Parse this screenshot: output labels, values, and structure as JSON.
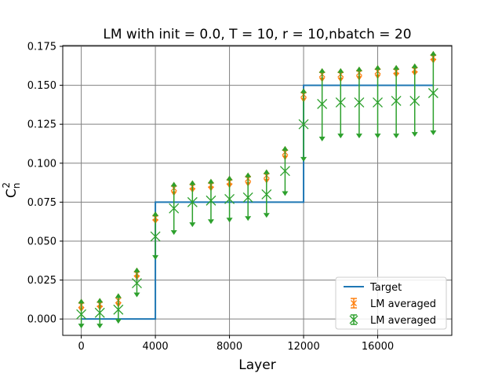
{
  "chart_data": {
    "type": "scatter",
    "title": "LM with init = 0.0, T = 10, r = 10,nbatch = 20",
    "xlabel": "Layer",
    "ylabel_base": "C",
    "ylabel_sub": "n",
    "ylabel_sup": "2",
    "xlim": [
      -1000,
      20000
    ],
    "ylim": [
      -0.0105,
      0.1755
    ],
    "grid": true,
    "legend_position": "lower-right",
    "x_ticks": [
      {
        "value": 0,
        "label": "0"
      },
      {
        "value": 4000,
        "label": "4000"
      },
      {
        "value": 8000,
        "label": "8000"
      },
      {
        "value": 12000,
        "label": "12000"
      },
      {
        "value": 16000,
        "label": "16000"
      }
    ],
    "y_ticks": [
      {
        "value": 0.0,
        "label": "0.000"
      },
      {
        "value": 0.025,
        "label": "0.025"
      },
      {
        "value": 0.05,
        "label": "0.050"
      },
      {
        "value": 0.075,
        "label": "0.075"
      },
      {
        "value": 0.1,
        "label": "0.100"
      },
      {
        "value": 0.125,
        "label": "0.125"
      },
      {
        "value": 0.15,
        "label": "0.150"
      },
      {
        "value": 0.175,
        "label": "0.175"
      }
    ],
    "target": {
      "name": "Target",
      "color": "#1f77b4",
      "points": [
        [
          0,
          0.0
        ],
        [
          4000,
          0.0
        ],
        [
          4000,
          0.075
        ],
        [
          12000,
          0.075
        ],
        [
          12000,
          0.15
        ],
        [
          19000,
          0.15
        ]
      ]
    },
    "series": [
      {
        "name": "LM averaged",
        "color": "#ff7f0e",
        "marker": "x",
        "x": [
          0,
          1000,
          2000,
          3000,
          4000,
          5000,
          6000,
          7000,
          8000,
          9000,
          10000,
          11000,
          12000,
          13000,
          14000,
          15000,
          16000,
          17000,
          18000,
          19000
        ],
        "y": [
          0.009,
          0.0095,
          0.012,
          0.029,
          0.065,
          0.084,
          0.085,
          0.086,
          0.088,
          0.09,
          0.092,
          0.107,
          0.144,
          0.157,
          0.157,
          0.158,
          0.159,
          0.159,
          0.16,
          0.168
        ],
        "err_low": [
          0.0075,
          0.0085,
          0.0105,
          0.028,
          0.064,
          0.082,
          0.084,
          0.085,
          0.087,
          0.088,
          0.09,
          0.105,
          0.142,
          0.155,
          0.155,
          0.156,
          0.157,
          0.158,
          0.159,
          0.167
        ],
        "err_high": [
          0.01,
          0.0105,
          0.0135,
          0.03,
          0.066,
          0.085,
          0.086,
          0.087,
          0.089,
          0.091,
          0.093,
          0.108,
          0.145,
          0.158,
          0.158,
          0.159,
          0.16,
          0.16,
          0.161,
          0.169
        ]
      },
      {
        "name": "LM averaged",
        "color": "#2ca02c",
        "marker": "x",
        "x": [
          0,
          1000,
          2000,
          3000,
          4000,
          5000,
          6000,
          7000,
          8000,
          9000,
          10000,
          11000,
          12000,
          13000,
          14000,
          15000,
          16000,
          17000,
          18000,
          19000
        ],
        "y": [
          0.003,
          0.004,
          0.006,
          0.023,
          0.053,
          0.071,
          0.075,
          0.076,
          0.077,
          0.078,
          0.08,
          0.095,
          0.125,
          0.138,
          0.139,
          0.139,
          0.139,
          0.14,
          0.14,
          0.145
        ],
        "err_low": [
          -0.003,
          -0.003,
          0.0,
          0.017,
          0.041,
          0.057,
          0.062,
          0.064,
          0.065,
          0.066,
          0.068,
          0.082,
          0.104,
          0.117,
          0.119,
          0.119,
          0.119,
          0.119,
          0.12,
          0.121
        ],
        "err_high": [
          0.01,
          0.0105,
          0.0135,
          0.03,
          0.066,
          0.085,
          0.086,
          0.087,
          0.089,
          0.091,
          0.093,
          0.108,
          0.145,
          0.158,
          0.158,
          0.159,
          0.16,
          0.16,
          0.161,
          0.169
        ]
      }
    ]
  }
}
